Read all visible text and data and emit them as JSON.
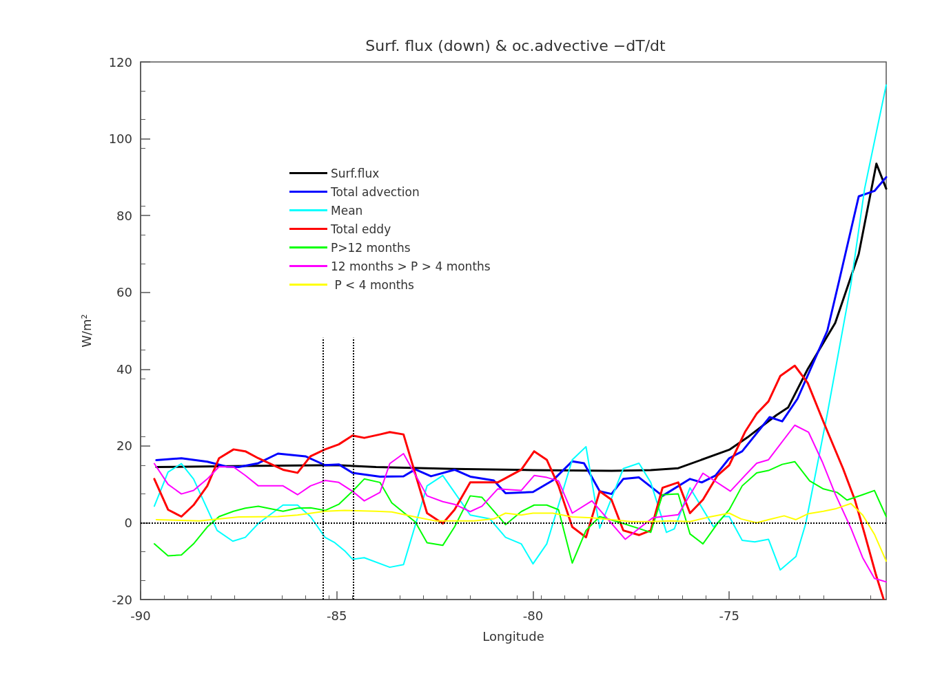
{
  "chart_data": {
    "type": "line",
    "title": "Surf. flux (down) & oc.advective −dT/dt",
    "xlabel": "Longitude",
    "ylabel": "W/m²",
    "xlim": [
      -90,
      -71
    ],
    "xticks": [
      -90,
      -85,
      -80,
      -75
    ],
    "ylim": [
      -20,
      120
    ],
    "yticks": [
      -20,
      0,
      20,
      40,
      60,
      80,
      100,
      120
    ],
    "grid": false,
    "legend": "top left",
    "marker": "none",
    "line_style": "solid",
    "ref_lines": [
      {
        "axis": "y",
        "value": 0,
        "line_style": "dotted",
        "color": "#000000"
      },
      {
        "axis": "x",
        "value": -85.35,
        "line_style": "dotted",
        "color": "#000000"
      },
      {
        "axis": "x",
        "value": -84.58,
        "line_style": "dotted",
        "color": "#000000"
      }
    ],
    "series": [
      {
        "name": "Surf.flux",
        "color": "#000000",
        "x": [
          -89.6,
          -87,
          -85,
          -84,
          -82,
          -80,
          -78,
          -77,
          -76.3,
          -75,
          -74.5,
          -73.8,
          -73.5,
          -73,
          -72.3,
          -71.7,
          -71.25,
          -71
        ],
        "values": [
          14.5,
          14.8,
          15,
          14.5,
          14,
          13.7,
          13.5,
          13.7,
          14.2,
          19,
          22.5,
          28,
          30,
          40,
          52,
          70,
          93.5,
          87
        ]
      },
      {
        "name": "Total advection",
        "color": "#0000ff",
        "x": [
          -89.6,
          -88.96,
          -88.3,
          -87.8,
          -87.5,
          -87,
          -86.5,
          -85.8,
          -85.3,
          -84.95,
          -84.6,
          -83.9,
          -83.3,
          -83,
          -82.6,
          -82,
          -81.6,
          -81,
          -80.7,
          -80,
          -79.5,
          -79,
          -78.7,
          -78.3,
          -78,
          -77.7,
          -77.3,
          -76.7,
          -76,
          -75.7,
          -75.35,
          -75,
          -74.67,
          -73.97,
          -73.65,
          -73.26,
          -72.5,
          -72.2,
          -71.7,
          -71.3,
          -71
        ],
        "values": [
          16.3,
          16.8,
          15.9,
          14.6,
          14.5,
          15.5,
          18,
          17.3,
          15,
          15.2,
          13,
          12,
          12.1,
          13.9,
          12.1,
          13.8,
          12,
          11,
          7.7,
          8,
          11,
          16,
          15.5,
          8.2,
          7.5,
          11.4,
          11.8,
          7,
          11.4,
          10.5,
          12.3,
          16.8,
          18.6,
          27.5,
          26.4,
          32.3,
          50,
          63,
          85,
          86.4,
          90
        ]
      },
      {
        "name": "Mean",
        "color": "#00ffff",
        "x": [
          -89.65,
          -89.3,
          -88.96,
          -88.65,
          -88.05,
          -87.65,
          -87.33,
          -87,
          -86.37,
          -86,
          -85.67,
          -85.3,
          -85.05,
          -84.8,
          -84.6,
          -84.3,
          -83.65,
          -83.3,
          -82.7,
          -82.3,
          -82,
          -81.6,
          -81.1,
          -80.7,
          -80.3,
          -80,
          -79.65,
          -79,
          -78.65,
          -78.3,
          -77.7,
          -77.3,
          -77,
          -76.6,
          -76.4,
          -76,
          -75.4,
          -75.15,
          -75,
          -74.67,
          -74.35,
          -74,
          -73.7,
          -73.3,
          -73.05,
          -72.5,
          -71.9,
          -71.55,
          -71
        ],
        "values": [
          4.3,
          13.2,
          15.4,
          11.4,
          -2,
          -4.8,
          -3.8,
          -0.2,
          4.6,
          4.6,
          1.6,
          -3.8,
          -5.2,
          -7.3,
          -9.5,
          -9.1,
          -11.6,
          -10.9,
          9.6,
          12.3,
          7.9,
          2,
          1,
          -3.8,
          -5.5,
          -10.7,
          -5.5,
          16.4,
          19.8,
          -1.4,
          14.1,
          15.5,
          10.5,
          -2.5,
          -1.6,
          9.1,
          -1.1,
          1.6,
          1.6,
          -4.6,
          -5,
          -4.3,
          -12.3,
          -8.8,
          -0.2,
          28.4,
          62,
          87,
          114
        ]
      },
      {
        "name": "Total eddy",
        "color": "#ff0000",
        "x": [
          -89.65,
          -89.3,
          -88.96,
          -88.65,
          -88.3,
          -88,
          -87.63,
          -87.33,
          -87,
          -86.37,
          -86,
          -85.67,
          -85.3,
          -84.95,
          -84.6,
          -84.3,
          -83.9,
          -83.65,
          -83.3,
          -82.7,
          -82.3,
          -82,
          -81.6,
          -80.9,
          -80.3,
          -79.97,
          -79.65,
          -79.35,
          -79,
          -78.65,
          -78.3,
          -78,
          -77.7,
          -77.3,
          -77,
          -76.7,
          -76.3,
          -76,
          -75.67,
          -75.3,
          -75,
          -74.6,
          -74.3,
          -74,
          -73.7,
          -73.33,
          -73,
          -72.6,
          -72.1,
          -71.8,
          -71.55,
          -71.26,
          -71.07
        ],
        "values": [
          11.4,
          3.4,
          1.6,
          4.6,
          9.6,
          16.8,
          19.1,
          18.6,
          16.8,
          13.8,
          13,
          17.3,
          19.1,
          20.4,
          22.7,
          22.1,
          23,
          23.6,
          23,
          2.5,
          -0.2,
          3.4,
          10.5,
          10.5,
          13.8,
          18.6,
          16.4,
          9.6,
          -1.1,
          -3.8,
          8.2,
          6,
          -2,
          -3.2,
          -2,
          9.1,
          10.5,
          2.5,
          6,
          12.3,
          15,
          23.6,
          28.4,
          31.6,
          38.2,
          40.9,
          36.4,
          26.3,
          14.1,
          6,
          -2.9,
          -13.6,
          -19.8
        ]
      },
      {
        "name": "P>12 months",
        "color": "#00ff00",
        "x": [
          -89.65,
          -89.3,
          -88.96,
          -88.65,
          -88.3,
          -88,
          -87.63,
          -87.33,
          -87,
          -86.37,
          -86,
          -85.67,
          -85.3,
          -84.95,
          -84.6,
          -84.3,
          -83.9,
          -83.6,
          -83,
          -82.7,
          -82.3,
          -82,
          -81.6,
          -81.3,
          -80.7,
          -80.3,
          -79.97,
          -79.65,
          -79.35,
          -79,
          -78.65,
          -78.3,
          -77.7,
          -77,
          -76.7,
          -76.3,
          -76,
          -75.67,
          -75.3,
          -75,
          -74.67,
          -74.3,
          -74,
          -73.65,
          -73.33,
          -72.95,
          -72.6,
          -72.25,
          -72,
          -71.6,
          -71.3,
          -71
        ],
        "values": [
          -5.5,
          -8.6,
          -8.4,
          -5.5,
          -1.1,
          1.6,
          3,
          3.8,
          4.3,
          3,
          3.8,
          3.9,
          3.2,
          4.8,
          8.2,
          11.4,
          10.5,
          5.2,
          0.2,
          -5.2,
          -5.9,
          -1.1,
          7,
          6.6,
          -0.5,
          2.9,
          4.6,
          4.6,
          3.4,
          -10.5,
          -2,
          1.6,
          -0.2,
          -2.5,
          7.3,
          7.5,
          -2.9,
          -5.5,
          -0.2,
          3.4,
          9.6,
          13,
          13.6,
          15.2,
          15.9,
          10.9,
          8.8,
          7.9,
          5.9,
          7.3,
          8.4,
          1.6
        ]
      },
      {
        "name": "12 months > P > 4 months",
        "color": "#ff00ff",
        "x": [
          -89.65,
          -89.3,
          -88.96,
          -88.65,
          -88.3,
          -88,
          -87.63,
          -87.33,
          -87,
          -86.37,
          -86,
          -85.67,
          -85.3,
          -84.95,
          -84.6,
          -84.3,
          -83.9,
          -83.65,
          -83.3,
          -82.7,
          -82.3,
          -82,
          -81.6,
          -81.3,
          -80.9,
          -80.3,
          -79.97,
          -79.65,
          -79.35,
          -79,
          -78.5,
          -77.65,
          -76.95,
          -76.3,
          -75.67,
          -74.97,
          -74.6,
          -74.3,
          -74,
          -73.33,
          -72.98,
          -72.63,
          -72.3,
          -71.9,
          -71.6,
          -71.3,
          -71
        ],
        "values": [
          15.4,
          10,
          7.5,
          8.4,
          11.4,
          14.6,
          14.5,
          12.3,
          9.6,
          9.6,
          7.3,
          9.6,
          11,
          10.5,
          8.2,
          5.7,
          7.9,
          15.4,
          18,
          7,
          5.5,
          4.8,
          2.9,
          4.3,
          8.8,
          8.4,
          12.3,
          11.8,
          10.9,
          2.5,
          5.7,
          -4.3,
          1.3,
          2.1,
          12.9,
          8.2,
          12.3,
          15.5,
          16.4,
          25.4,
          23.6,
          15.9,
          7.5,
          -1.4,
          -9.1,
          -14.5,
          -15.4
        ]
      },
      {
        "name": " P < 4 months",
        "color": "#ffff00",
        "x": [
          -89.6,
          -88.5,
          -87.5,
          -86.5,
          -86,
          -85.3,
          -84.8,
          -84,
          -83.6,
          -83,
          -82.5,
          -82,
          -81.5,
          -81,
          -80.7,
          -80.3,
          -80,
          -79.5,
          -79,
          -78.5,
          -78,
          -77.5,
          -77,
          -76.5,
          -76,
          -75.5,
          -75,
          -74.7,
          -74.3,
          -74,
          -73.6,
          -73.3,
          -73,
          -72.6,
          -72.3,
          -71.9,
          -71.6,
          -71.3,
          -71
        ],
        "values": [
          0.8,
          0.5,
          1.5,
          1.6,
          2,
          3,
          3.2,
          3,
          2.8,
          1.5,
          0.5,
          0.5,
          0.5,
          1,
          2.5,
          2,
          2.5,
          2.5,
          1.5,
          1.3,
          0.8,
          0.3,
          0.3,
          0.5,
          0.3,
          1.5,
          2.5,
          1,
          0,
          0.8,
          1.8,
          0.8,
          2.3,
          3,
          3.6,
          5,
          2,
          -3,
          -10
        ]
      }
    ]
  }
}
